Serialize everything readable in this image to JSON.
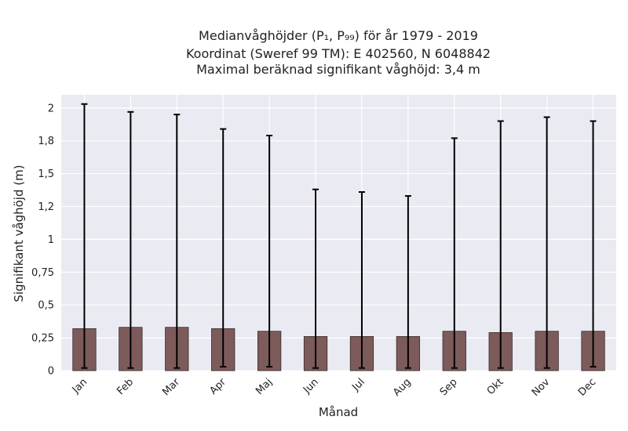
{
  "chart_data": {
    "type": "bar",
    "title_lines": [
      "Medianvåghöjder (P₁, P₉₉) för år 1979 - 2019",
      "Koordinat (Sweref 99 TM): E 402560, N 6048842",
      "Maximal beräknad signifikant våghöjd: 3,4 m"
    ],
    "xlabel": "Månad",
    "ylabel": "Signifikant våghöjd (m)",
    "categories": [
      "Jan",
      "Feb",
      "Mar",
      "Apr",
      "Maj",
      "Jun",
      "Jul",
      "Aug",
      "Sep",
      "Okt",
      "Nov",
      "Dec"
    ],
    "values": [
      0.32,
      0.33,
      0.33,
      0.32,
      0.3,
      0.26,
      0.26,
      0.26,
      0.3,
      0.29,
      0.3,
      0.3
    ],
    "p1": [
      0.02,
      0.02,
      0.02,
      0.03,
      0.03,
      0.02,
      0.02,
      0.02,
      0.02,
      0.02,
      0.02,
      0.03
    ],
    "p99": [
      2.03,
      1.97,
      1.95,
      1.84,
      1.79,
      1.38,
      1.36,
      1.33,
      1.77,
      1.9,
      1.93,
      1.9
    ],
    "yticks": [
      0,
      0.25,
      0.5,
      0.75,
      1,
      1.25,
      1.5,
      1.75,
      2
    ],
    "ytick_labels": [
      "0",
      "0,25",
      "0,5",
      "0,75",
      "1",
      "1,2",
      "1,5",
      "1,8",
      "2"
    ],
    "ylim": [
      0,
      2.1
    ],
    "grid": true,
    "colors": {
      "bar": "#7d5b5b",
      "bar_edge": "#3a2a2a",
      "error": "#000000",
      "plot_bg": "#eaeaf2",
      "grid": "#ffffff"
    }
  }
}
